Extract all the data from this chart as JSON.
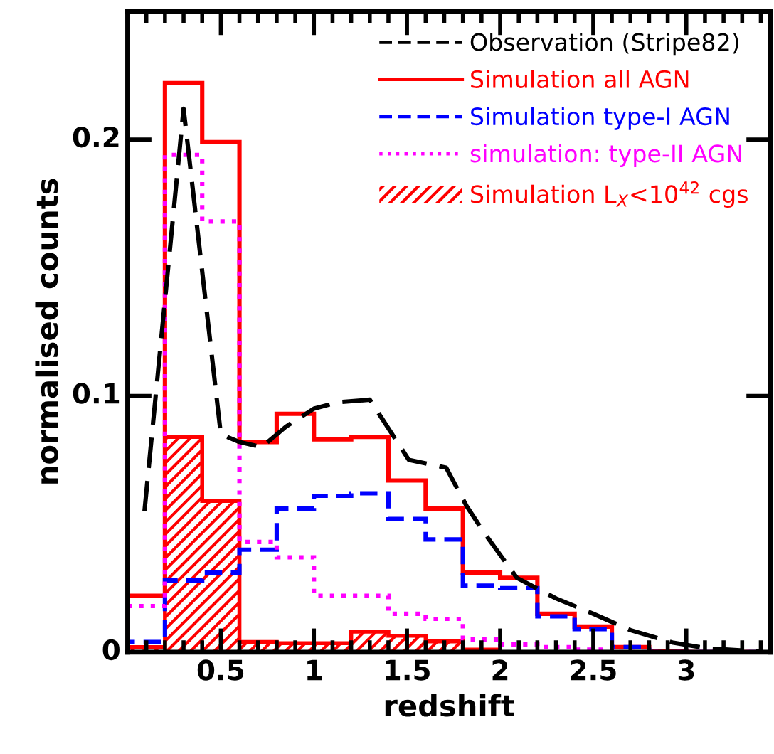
{
  "chart_data": {
    "type": "histogram",
    "xlabel": "redshift",
    "ylabel": "normalised counts",
    "bins": [
      0,
      0.2,
      0.4,
      0.6,
      0.8,
      1.0,
      1.2,
      1.4,
      1.6,
      1.8,
      2.0,
      2.2,
      2.4,
      2.6,
      2.8,
      3.0,
      3.2,
      3.4
    ],
    "series": [
      {
        "name": "Observation (Stripe82)",
        "type": "line",
        "color": "#000000",
        "line_style": "dashed",
        "x": [
          0.09,
          0.3,
          0.5,
          0.6,
          0.72,
          0.85,
          1.0,
          1.13,
          1.3,
          1.51,
          1.71,
          1.82,
          1.92,
          2.09,
          2.3,
          2.5,
          2.7,
          2.93,
          3.11,
          3.39
        ],
        "values": [
          0.055,
          0.212,
          0.085,
          0.082,
          0.08,
          0.088,
          0.095,
          0.0975,
          0.0985,
          0.075,
          0.072,
          0.057,
          0.046,
          0.029,
          0.021,
          0.015,
          0.0086,
          0.0037,
          0.0015,
          0.0003
        ]
      },
      {
        "name": "Simulation all AGN",
        "color": "#ff0000",
        "line_style": "solid",
        "values": [
          0.022,
          0.222,
          0.199,
          0.082,
          0.093,
          0.083,
          0.084,
          0.067,
          0.056,
          0.031,
          0.029,
          0.015,
          0.01,
          0.002,
          0.0005,
          0,
          0
        ]
      },
      {
        "name": "Simulation type-I AGN",
        "color": "#0000ff",
        "line_style": "dashed",
        "values": [
          0.004,
          0.028,
          0.031,
          0.04,
          0.056,
          0.061,
          0.062,
          0.052,
          0.044,
          0.026,
          0.025,
          0.014,
          0.009,
          0.002,
          0,
          0,
          0
        ]
      },
      {
        "name": "simulation: type-II AGN",
        "color": "#ff00ff",
        "line_style": "dotted",
        "values": [
          0.018,
          0.194,
          0.168,
          0.043,
          0.037,
          0.022,
          0.022,
          0.015,
          0.013,
          0.005,
          0.003,
          0.002,
          0.001,
          0,
          0,
          0,
          0
        ]
      },
      {
        "name": "Simulation L$_{X}$<10$^{42}$ cgs",
        "color": "#ff0000",
        "values": [
          0.002,
          0.084,
          0.059,
          0.004,
          0.0035,
          0.0035,
          0.008,
          0.0064,
          0.0042,
          0.001,
          0,
          0,
          0,
          0,
          0,
          0,
          0
        ]
      }
    ],
    "xlim": [
      0,
      3.45
    ],
    "ylim": [
      0,
      0.25
    ],
    "xticks": [
      0.5,
      1,
      1.5,
      2,
      2.5,
      3
    ],
    "yticks": [
      0,
      0.1,
      0.2
    ],
    "legend": "top right",
    "grid": false
  }
}
